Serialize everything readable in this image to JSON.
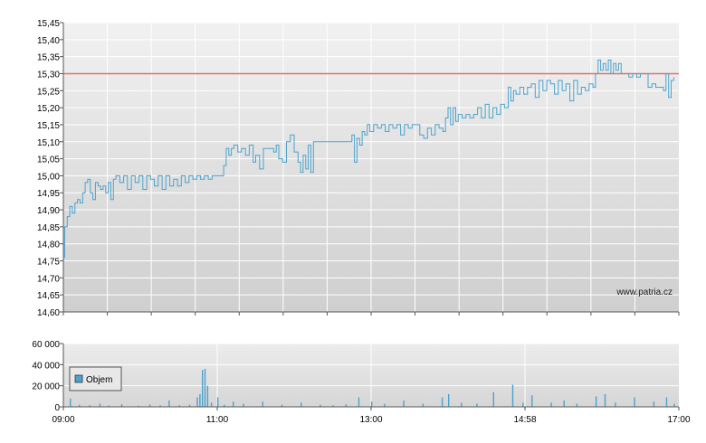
{
  "chart_data": [
    {
      "type": "line",
      "x_start": "09:00",
      "x_end": "17:00",
      "x_tick_labels": [
        "09:00",
        "11:00",
        "13:00",
        "14:58",
        "17:00"
      ],
      "ylim": [
        14.6,
        15.45
      ],
      "y_ticks": [
        14.6,
        14.65,
        14.7,
        14.75,
        14.8,
        14.85,
        14.9,
        14.95,
        15.0,
        15.05,
        15.1,
        15.15,
        15.2,
        15.25,
        15.3,
        15.35,
        15.4,
        15.45
      ],
      "y_tick_labels": [
        "14,60",
        "14,65",
        "14,70",
        "14,75",
        "14,80",
        "14,85",
        "14,90",
        "14,95",
        "15,00",
        "15,05",
        "15,10",
        "15,15",
        "15,20",
        "15,25",
        "15,30",
        "15,35",
        "15,40",
        "15,45"
      ],
      "reference_line": 15.3,
      "reference_color": "#e07070",
      "series_color": "#4aa3cf",
      "watermark": "www.patria.cz",
      "series": [
        {
          "points": [
            [
              "09:00",
              14.76
            ],
            [
              "09:01",
              14.85
            ],
            [
              "09:03",
              14.88
            ],
            [
              "09:05",
              14.91
            ],
            [
              "09:07",
              14.89
            ],
            [
              "09:09",
              14.92
            ],
            [
              "09:11",
              14.93
            ],
            [
              "09:13",
              14.92
            ],
            [
              "09:15",
              14.95
            ],
            [
              "09:17",
              14.98
            ],
            [
              "09:19",
              14.99
            ],
            [
              "09:21",
              14.95
            ],
            [
              "09:23",
              14.93
            ],
            [
              "09:25",
              14.98
            ],
            [
              "09:27",
              14.97
            ],
            [
              "09:29",
              14.96
            ],
            [
              "09:31",
              14.97
            ],
            [
              "09:33",
              14.95
            ],
            [
              "09:35",
              14.98
            ],
            [
              "09:37",
              14.93
            ],
            [
              "09:39",
              14.99
            ],
            [
              "09:41",
              15.0
            ],
            [
              "09:44",
              14.98
            ],
            [
              "09:47",
              15.0
            ],
            [
              "09:50",
              14.96
            ],
            [
              "09:53",
              15.0
            ],
            [
              "09:56",
              14.98
            ],
            [
              "09:59",
              15.0
            ],
            [
              "10:02",
              14.96
            ],
            [
              "10:05",
              15.0
            ],
            [
              "10:08",
              14.99
            ],
            [
              "10:11",
              14.97
            ],
            [
              "10:14",
              15.0
            ],
            [
              "10:17",
              14.96
            ],
            [
              "10:20",
              15.0
            ],
            [
              "10:23",
              14.97
            ],
            [
              "10:26",
              14.99
            ],
            [
              "10:29",
              14.97
            ],
            [
              "10:32",
              15.0
            ],
            [
              "10:35",
              14.98
            ],
            [
              "10:38",
              15.0
            ],
            [
              "10:41",
              14.99
            ],
            [
              "10:44",
              15.0
            ],
            [
              "10:47",
              14.99
            ],
            [
              "10:50",
              15.0
            ],
            [
              "10:53",
              14.99
            ],
            [
              "10:56",
              15.0
            ],
            [
              "10:59",
              15.0
            ],
            [
              "11:02",
              15.0
            ],
            [
              "11:05",
              15.03
            ],
            [
              "11:07",
              15.08
            ],
            [
              "11:09",
              15.06
            ],
            [
              "11:11",
              15.08
            ],
            [
              "11:13",
              15.09
            ],
            [
              "11:16",
              15.07
            ],
            [
              "11:19",
              15.08
            ],
            [
              "11:22",
              15.06
            ],
            [
              "11:25",
              15.09
            ],
            [
              "11:28",
              15.04
            ],
            [
              "11:30",
              15.06
            ],
            [
              "11:33",
              15.02
            ],
            [
              "11:36",
              15.08
            ],
            [
              "11:40",
              15.08
            ],
            [
              "11:44",
              15.07
            ],
            [
              "11:46",
              15.09
            ],
            [
              "11:48",
              15.05
            ],
            [
              "11:51",
              15.04
            ],
            [
              "11:54",
              15.1
            ],
            [
              "11:57",
              15.12
            ],
            [
              "12:00",
              15.07
            ],
            [
              "12:03",
              15.04
            ],
            [
              "12:05",
              15.01
            ],
            [
              "12:07",
              15.06
            ],
            [
              "12:09",
              15.02
            ],
            [
              "12:11",
              15.09
            ],
            [
              "12:13",
              15.01
            ],
            [
              "12:15",
              15.1
            ],
            [
              "12:18",
              15.1
            ],
            [
              "12:22",
              15.1
            ],
            [
              "12:26",
              15.1
            ],
            [
              "12:30",
              15.1
            ],
            [
              "12:34",
              15.1
            ],
            [
              "12:38",
              15.1
            ],
            [
              "12:42",
              15.1
            ],
            [
              "12:45",
              15.12
            ],
            [
              "12:47",
              15.04
            ],
            [
              "12:49",
              15.11
            ],
            [
              "12:51",
              15.09
            ],
            [
              "12:53",
              15.13
            ],
            [
              "12:55",
              15.12
            ],
            [
              "12:57",
              15.15
            ],
            [
              "12:59",
              15.13
            ],
            [
              "13:02",
              15.15
            ],
            [
              "13:05",
              15.14
            ],
            [
              "13:08",
              15.15
            ],
            [
              "13:11",
              15.13
            ],
            [
              "13:14",
              15.15
            ],
            [
              "13:17",
              15.14
            ],
            [
              "13:20",
              15.15
            ],
            [
              "13:23",
              15.12
            ],
            [
              "13:26",
              15.15
            ],
            [
              "13:29",
              15.14
            ],
            [
              "13:32",
              15.15
            ],
            [
              "13:35",
              15.15
            ],
            [
              "13:38",
              15.12
            ],
            [
              "13:41",
              15.11
            ],
            [
              "13:44",
              15.14
            ],
            [
              "13:47",
              15.12
            ],
            [
              "13:50",
              15.15
            ],
            [
              "13:53",
              15.14
            ],
            [
              "13:56",
              15.13
            ],
            [
              "13:58",
              15.17
            ],
            [
              "14:00",
              15.2
            ],
            [
              "14:02",
              15.15
            ],
            [
              "14:04",
              15.2
            ],
            [
              "14:06",
              15.16
            ],
            [
              "14:08",
              15.18
            ],
            [
              "14:11",
              15.17
            ],
            [
              "14:14",
              15.18
            ],
            [
              "14:17",
              15.17
            ],
            [
              "14:20",
              15.18
            ],
            [
              "14:23",
              15.2
            ],
            [
              "14:26",
              15.17
            ],
            [
              "14:29",
              15.21
            ],
            [
              "14:32",
              15.17
            ],
            [
              "14:35",
              15.2
            ],
            [
              "14:38",
              15.18
            ],
            [
              "14:41",
              15.21
            ],
            [
              "14:44",
              15.2
            ],
            [
              "14:47",
              15.26
            ],
            [
              "14:49",
              15.22
            ],
            [
              "14:51",
              15.25
            ],
            [
              "14:53",
              15.24
            ],
            [
              "14:56",
              15.26
            ],
            [
              "14:59",
              15.24
            ],
            [
              "15:02",
              15.26
            ],
            [
              "15:05",
              15.27
            ],
            [
              "15:08",
              15.23
            ],
            [
              "15:11",
              15.28
            ],
            [
              "15:14",
              15.25
            ],
            [
              "15:17",
              15.28
            ],
            [
              "15:20",
              15.27
            ],
            [
              "15:23",
              15.24
            ],
            [
              "15:26",
              15.28
            ],
            [
              "15:29",
              15.25
            ],
            [
              "15:32",
              15.27
            ],
            [
              "15:35",
              15.22
            ],
            [
              "15:38",
              15.28
            ],
            [
              "15:41",
              15.24
            ],
            [
              "15:44",
              15.26
            ],
            [
              "15:47",
              15.25
            ],
            [
              "15:50",
              15.27
            ],
            [
              "15:53",
              15.26
            ],
            [
              "15:55",
              15.3
            ],
            [
              "15:57",
              15.34
            ],
            [
              "15:59",
              15.31
            ],
            [
              "16:01",
              15.33
            ],
            [
              "16:03",
              15.31
            ],
            [
              "16:05",
              15.34
            ],
            [
              "16:07",
              15.3
            ],
            [
              "16:09",
              15.33
            ],
            [
              "16:11",
              15.31
            ],
            [
              "16:13",
              15.33
            ],
            [
              "16:15",
              15.3
            ],
            [
              "16:18",
              15.3
            ],
            [
              "16:21",
              15.29
            ],
            [
              "16:24",
              15.3
            ],
            [
              "16:27",
              15.29
            ],
            [
              "16:30",
              15.3
            ],
            [
              "16:33",
              15.3
            ],
            [
              "16:36",
              15.26
            ],
            [
              "16:39",
              15.27
            ],
            [
              "16:42",
              15.26
            ],
            [
              "16:45",
              15.26
            ],
            [
              "16:48",
              15.25
            ],
            [
              "16:50",
              15.3
            ],
            [
              "16:52",
              15.23
            ],
            [
              "16:54",
              15.28
            ],
            [
              "16:56",
              15.29
            ]
          ]
        }
      ]
    },
    {
      "type": "bar",
      "x_start": "09:00",
      "x_end": "17:00",
      "x_tick_labels": [
        "09:00",
        "11:00",
        "13:00",
        "14:58",
        "17:00"
      ],
      "ylim": [
        0,
        60000
      ],
      "y_ticks": [
        0,
        20000,
        40000,
        60000
      ],
      "y_tick_labels": [
        "0",
        "20 000",
        "40 000",
        "60 000"
      ],
      "series_color": "#4aa3cf",
      "legend": "Objem",
      "legend_position": "top-left",
      "series": [
        {
          "name": "Objem",
          "points": [
            [
              "09:05",
              8000
            ],
            [
              "09:12",
              2000
            ],
            [
              "09:20",
              1500
            ],
            [
              "09:28",
              3000
            ],
            [
              "09:35",
              1200
            ],
            [
              "09:45",
              2500
            ],
            [
              "09:58",
              1000
            ],
            [
              "10:07",
              2200
            ],
            [
              "10:15",
              1500
            ],
            [
              "10:22",
              6000
            ],
            [
              "10:30",
              1500
            ],
            [
              "10:38",
              2000
            ],
            [
              "10:44",
              9000
            ],
            [
              "10:46",
              12000
            ],
            [
              "10:48",
              35000
            ],
            [
              "10:50",
              36000
            ],
            [
              "10:52",
              20000
            ],
            [
              "10:55",
              4000
            ],
            [
              "11:00",
              9000
            ],
            [
              "11:05",
              2000
            ],
            [
              "11:12",
              5000
            ],
            [
              "11:20",
              3000
            ],
            [
              "11:35",
              5000
            ],
            [
              "11:50",
              2000
            ],
            [
              "12:05",
              4000
            ],
            [
              "12:20",
              2000
            ],
            [
              "12:30",
              1500
            ],
            [
              "12:40",
              2500
            ],
            [
              "12:50",
              9000
            ],
            [
              "13:00",
              5000
            ],
            [
              "13:10",
              3000
            ],
            [
              "13:25",
              6000
            ],
            [
              "13:40",
              3000
            ],
            [
              "13:55",
              9000
            ],
            [
              "14:00",
              12000
            ],
            [
              "14:10",
              4000
            ],
            [
              "14:22",
              3000
            ],
            [
              "14:35",
              14000
            ],
            [
              "14:50",
              21000
            ],
            [
              "14:58",
              4000
            ],
            [
              "15:05",
              11000
            ],
            [
              "15:20",
              4000
            ],
            [
              "15:30",
              6000
            ],
            [
              "15:40",
              3000
            ],
            [
              "15:55",
              10000
            ],
            [
              "16:02",
              12000
            ],
            [
              "16:10",
              4000
            ],
            [
              "16:25",
              9000
            ],
            [
              "16:40",
              5000
            ],
            [
              "16:50",
              9000
            ],
            [
              "16:56",
              3000
            ]
          ]
        }
      ]
    }
  ]
}
